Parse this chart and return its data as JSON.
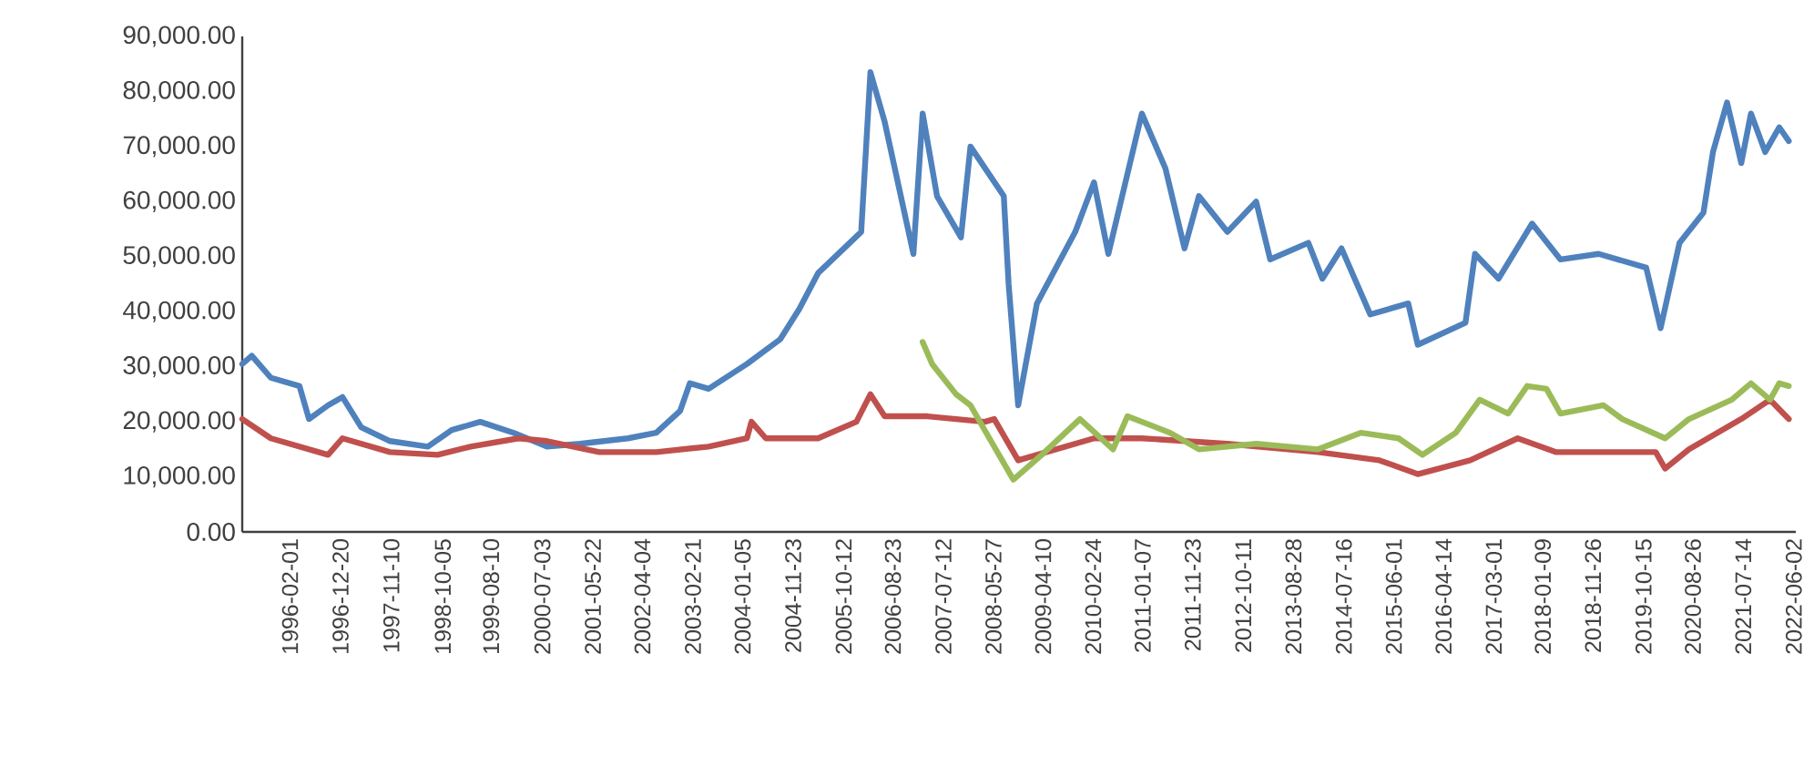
{
  "chart_data": {
    "type": "line",
    "xlim": [
      "1995-04-01",
      "2022-06-15"
    ],
    "ylim": [
      0,
      90000
    ],
    "xticks": [
      "1996-02-01",
      "1996-12-20",
      "1997-11-10",
      "1998-10-05",
      "1999-08-10",
      "2000-07-03",
      "2001-05-22",
      "2002-04-04",
      "2003-02-21",
      "2004-01-05",
      "2004-11-23",
      "2005-10-12",
      "2006-08-23",
      "2007-07-12",
      "2008-05-27",
      "2009-04-10",
      "2010-02-24",
      "2011-01-07",
      "2011-11-23",
      "2012-10-11",
      "2013-08-28",
      "2014-07-16",
      "2015-06-01",
      "2016-04-14",
      "2017-03-01",
      "2018-01-09",
      "2018-11-26",
      "2019-10-15",
      "2020-08-26",
      "2021-07-14",
      "2022-06-02"
    ],
    "yticks": [
      {
        "value": 0,
        "label": "0.00"
      },
      {
        "value": 10000,
        "label": "10,000.00"
      },
      {
        "value": 20000,
        "label": "20,000.00"
      },
      {
        "value": 30000,
        "label": "30,000.00"
      },
      {
        "value": 40000,
        "label": "40,000.00"
      },
      {
        "value": 50000,
        "label": "50,000.00"
      },
      {
        "value": 60000,
        "label": "60,000.00"
      },
      {
        "value": 70000,
        "label": "70,000.00"
      },
      {
        "value": 80000,
        "label": "80,000.00"
      },
      {
        "value": 90000,
        "label": "90,000.00"
      }
    ],
    "series": [
      {
        "color": "#4f81bd",
        "x": [
          "1995-04",
          "1995-06",
          "1995-10",
          "1996-04",
          "1996-06",
          "1996-10",
          "1997-01",
          "1997-05",
          "1997-11",
          "1998-07",
          "1998-12",
          "1999-06",
          "2000-01",
          "2000-08",
          "2001-03",
          "2002-01",
          "2002-07",
          "2002-12",
          "2003-02",
          "2003-06",
          "2004-02",
          "2004-09",
          "2005-01",
          "2005-05",
          "2006-02",
          "2006-04",
          "2006-07",
          "2007-01",
          "2007-03",
          "2007-06",
          "2007-11",
          "2008-01",
          "2008-08",
          "2008-09",
          "2008-11",
          "2009-03",
          "2009-11",
          "2010-03",
          "2010-06",
          "2011-01",
          "2011-06",
          "2011-10",
          "2012-01",
          "2012-07",
          "2013-01",
          "2013-04",
          "2013-12",
          "2014-03",
          "2014-07",
          "2015-01",
          "2015-09",
          "2015-11",
          "2016-09",
          "2016-11",
          "2017-04",
          "2017-11",
          "2018-05",
          "2019-01",
          "2019-11",
          "2020-02",
          "2020-06",
          "2020-11",
          "2021-01",
          "2021-04",
          "2021-07",
          "2021-09",
          "2021-12",
          "2022-03",
          "2022-05"
        ],
        "values": [
          30500,
          32000,
          28000,
          26500,
          20500,
          23000,
          24500,
          19000,
          16500,
          15500,
          18500,
          20000,
          18000,
          15500,
          16000,
          17000,
          18000,
          22000,
          27000,
          26000,
          30500,
          35000,
          40500,
          47000,
          54500,
          83500,
          74500,
          50500,
          76000,
          61000,
          53500,
          70000,
          61000,
          45000,
          23000,
          41500,
          54500,
          63500,
          50500,
          76000,
          66000,
          51500,
          61000,
          54500,
          60000,
          49500,
          52500,
          46000,
          51500,
          39500,
          41500,
          34000,
          38000,
          50500,
          46000,
          56000,
          49500,
          50500,
          48000,
          37000,
          52500,
          58000,
          69000,
          78000,
          67000,
          76000,
          69000,
          73500,
          71000
        ]
      },
      {
        "color": "#c0504d",
        "x": [
          "1995-04",
          "1995-10",
          "1996-10",
          "1997-01",
          "1997-11",
          "1998-09",
          "1999-04",
          "2000-02",
          "2000-08",
          "2001-07",
          "2002-07",
          "2003-06",
          "2004-02",
          "2004-03",
          "2004-06",
          "2005-05",
          "2006-01",
          "2006-04",
          "2006-07",
          "2007-04",
          "2008-04",
          "2008-06",
          "2008-11",
          "2010-03",
          "2011-01",
          "2012-07",
          "2014-02",
          "2015-03",
          "2015-11",
          "2016-10",
          "2017-08",
          "2018-04",
          "2018-10",
          "2020-01",
          "2020-03",
          "2020-08",
          "2021-07",
          "2022-01",
          "2022-05"
        ],
        "values": [
          20500,
          17000,
          14000,
          17000,
          14500,
          14000,
          15500,
          17000,
          16500,
          14500,
          14500,
          15500,
          17000,
          20000,
          17000,
          17000,
          20000,
          25000,
          21000,
          21000,
          20000,
          20500,
          13000,
          17000,
          17000,
          16000,
          14500,
          13000,
          10500,
          13000,
          17000,
          14500,
          14500,
          14500,
          11500,
          15000,
          20500,
          24000,
          20500
        ]
      },
      {
        "color": "#9bbb59",
        "x": [
          "2007-03",
          "2007-05",
          "2007-10",
          "2008-01",
          "2008-05",
          "2008-10",
          "2009-04",
          "2009-12",
          "2010-07",
          "2010-10",
          "2011-07",
          "2012-01",
          "2013-01",
          "2014-02",
          "2014-11",
          "2015-07",
          "2015-12",
          "2016-07",
          "2016-12",
          "2017-06",
          "2017-10",
          "2018-02",
          "2018-05",
          "2019-02",
          "2019-06",
          "2020-03",
          "2020-08",
          "2021-05",
          "2021-09",
          "2022-01",
          "2022-03",
          "2022-05"
        ],
        "values": [
          34500,
          30500,
          25000,
          23000,
          17000,
          9500,
          14000,
          20500,
          15000,
          21000,
          18000,
          15000,
          16000,
          15000,
          18000,
          17000,
          14000,
          18000,
          24000,
          21500,
          26500,
          26000,
          21500,
          23000,
          20500,
          17000,
          20500,
          24000,
          27000,
          24000,
          27000,
          26500
        ]
      }
    ]
  }
}
